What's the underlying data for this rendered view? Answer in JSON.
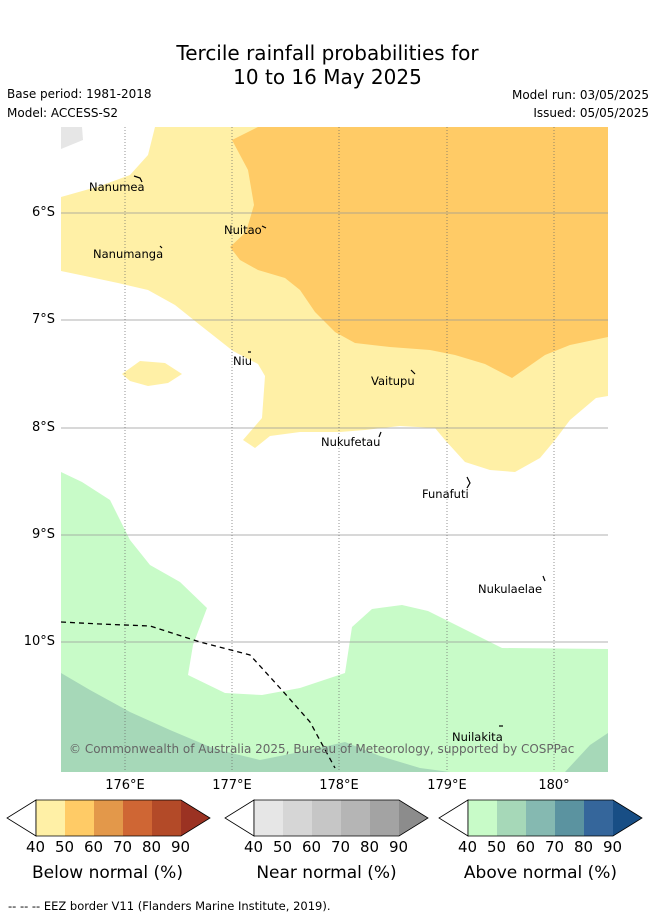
{
  "title": {
    "line1": "Tercile rainfall probabilities for",
    "line2": "10 to 16 May 2025"
  },
  "meta": {
    "base_period": "Base period: 1981-2018",
    "model": "Model: ACCESS-S2",
    "model_run": "Model run: 03/05/2025",
    "issued": "Issued: 05/05/2025"
  },
  "axes": {
    "lat_ticks": [
      "6°S",
      "7°S",
      "8°S",
      "9°S",
      "10°S"
    ],
    "lon_ticks": [
      "176°E",
      "177°E",
      "178°E",
      "179°E",
      "180°"
    ]
  },
  "places": [
    {
      "name": "Nanumea"
    },
    {
      "name": "Nuitao"
    },
    {
      "name": "Nanumanga"
    },
    {
      "name": "Niu"
    },
    {
      "name": "Vaitupu"
    },
    {
      "name": "Nukufetau"
    },
    {
      "name": "Funafuti"
    },
    {
      "name": "Nukulaelae"
    },
    {
      "name": "Nuilakita"
    }
  ],
  "copyright": "© Commonwealth of Australia 2025, Bureau of Meteorology, supported by COSPPac",
  "colorbars": {
    "labels": [
      "40",
      "50",
      "60",
      "70",
      "80",
      "90"
    ],
    "below": {
      "title": "Below normal (%)",
      "colors": [
        "#fff0a6",
        "#ffcb66",
        "#e3984a",
        "#cf6634",
        "#b34a28",
        "#9b3222"
      ]
    },
    "near": {
      "title": "Near normal (%)",
      "colors": [
        "#e6e6e6",
        "#d6d6d6",
        "#c6c6c6",
        "#b5b5b5",
        "#a3a3a3",
        "#8c8c8c"
      ]
    },
    "above": {
      "title": "Above normal (%)",
      "colors": [
        "#c8fbc8",
        "#a6d8b8",
        "#85b9b1",
        "#5b93a0",
        "#35669b",
        "#184e85"
      ]
    }
  },
  "footer": "--  --  -- EEZ border V11 (Flanders Marine Institute, 2019)."
}
